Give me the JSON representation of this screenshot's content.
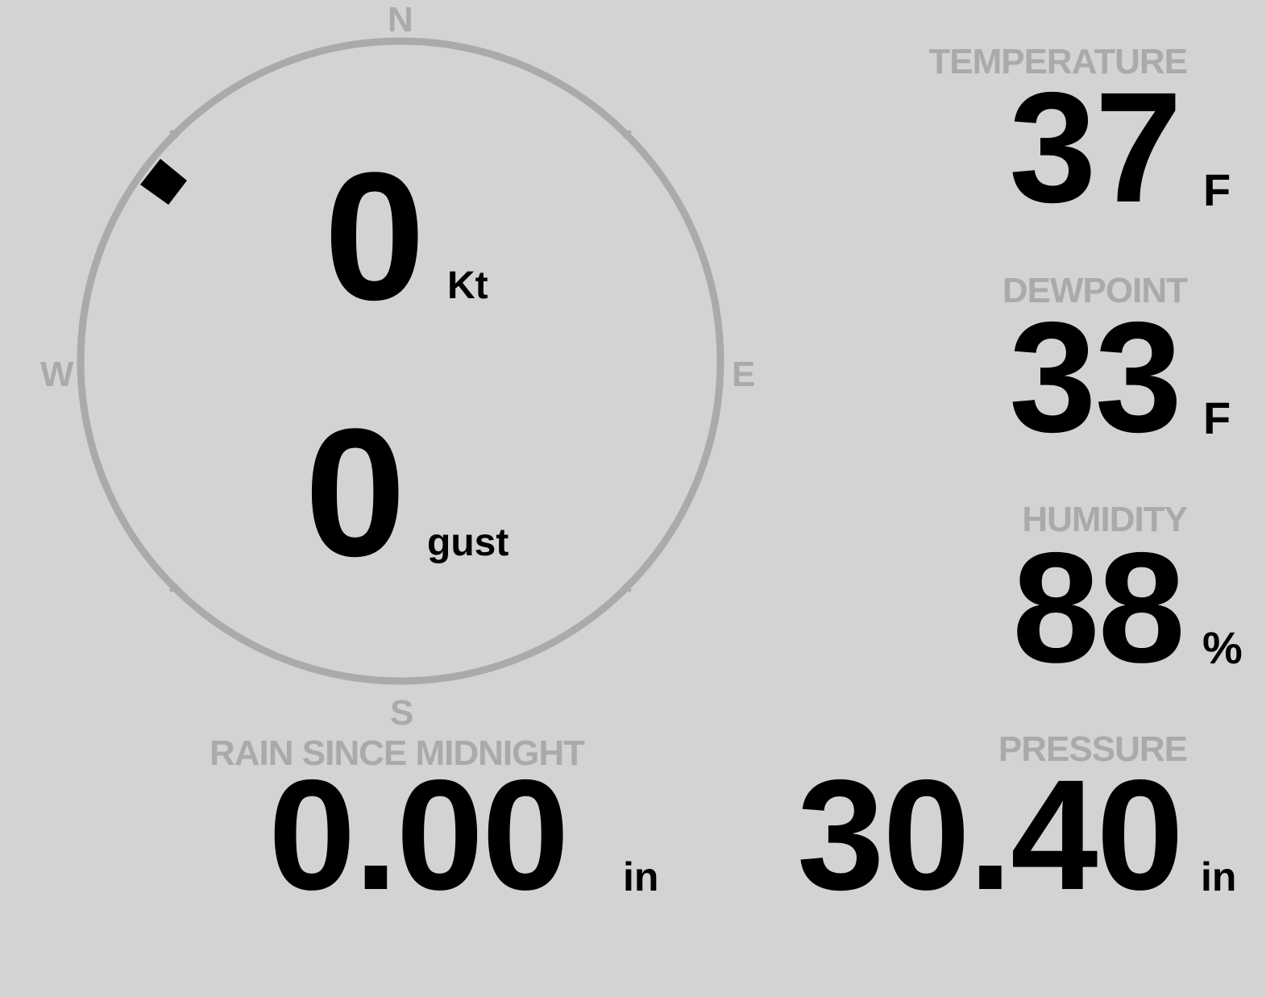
{
  "colors": {
    "background": "#d3d3d3",
    "label": "#aaaaaa",
    "value": "#000000",
    "compass_ring": "#aaaaaa",
    "wind_direction_marker": "#000000"
  },
  "wind": {
    "compass": {
      "n": "N",
      "e": "E",
      "s": "S",
      "w": "W"
    },
    "direction_deg": 310,
    "speed": "0",
    "speed_unit": "Kt",
    "gust": "0",
    "gust_unit": "gust"
  },
  "temperature": {
    "label": "TEMPERATURE",
    "value": "37",
    "unit": "F"
  },
  "dewpoint": {
    "label": "DEWPOINT",
    "value": "33",
    "unit": "F"
  },
  "humidity": {
    "label": "HUMIDITY",
    "value": "88",
    "unit": "%"
  },
  "rain": {
    "label": "RAIN SINCE MIDNIGHT",
    "value": "0.00",
    "unit": "in"
  },
  "pressure": {
    "label": "PRESSURE",
    "value": "30.40",
    "unit": "in"
  }
}
